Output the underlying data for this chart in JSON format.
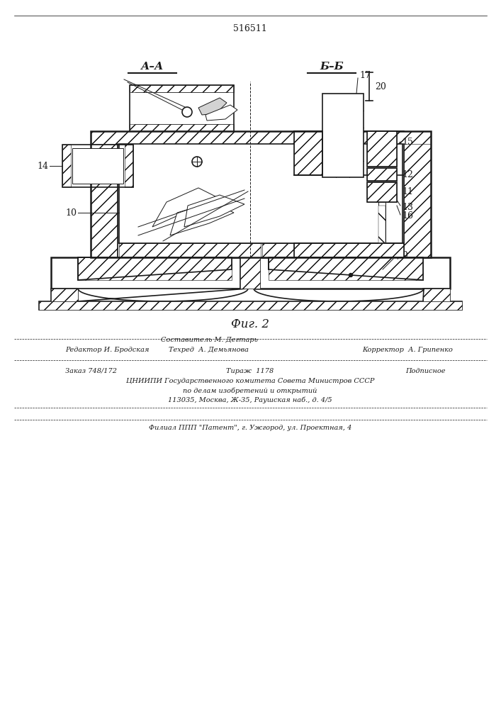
{
  "patent_number": "516511",
  "fig_label": "Фиг. 2",
  "section_AA": "А–А",
  "section_BB": "Б–Б",
  "footer_editor": "Редактор И. Бродская",
  "footer_comp": "Составитель М. Дегтарь",
  "footer_tech": "Техред  А. Демьянова",
  "footer_corr": "Корректор  А. Грипенко",
  "footer_order": "Заказ 748/172",
  "footer_tirazh": "Тираж  1178",
  "footer_podp": "Подписное",
  "footer_org1": "ЦНИИПИ Государственного комитета Совета Министров СССР",
  "footer_org2": "по делам изобретений и открытий",
  "footer_addr": "113035, Москва, Ж-35, Раушская наб., д. 4/5",
  "footer_filial": "Филиал ППП \"Патент\", г. Ужгород, ул. Проектная, 4",
  "bg_color": "#ffffff"
}
